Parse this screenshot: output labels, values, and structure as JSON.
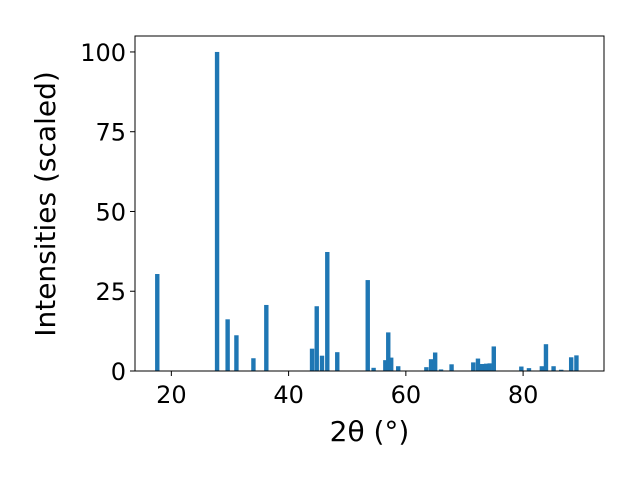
{
  "chart_data": {
    "type": "bar",
    "title": "",
    "xlabel": "2θ (°)",
    "ylabel": "Intensities (scaled)",
    "xlim": [
      13.8,
      93.8
    ],
    "ylim": [
      0,
      105
    ],
    "xticks": [
      20,
      40,
      60,
      80
    ],
    "yticks": [
      0,
      25,
      50,
      75,
      100
    ],
    "grid": false,
    "legend": "none",
    "bar_color": "#1f77b4",
    "bar_width": 0.75,
    "x": [
      17.6,
      27.8,
      29.6,
      31.1,
      34.0,
      36.2,
      44.0,
      44.8,
      45.7,
      46.6,
      48.3,
      53.5,
      54.5,
      56.5,
      57.0,
      57.5,
      58.7,
      63.5,
      64.3,
      65.0,
      66.0,
      67.8,
      71.5,
      72.3,
      73.0,
      73.7,
      74.3,
      75.0,
      79.7,
      81.0,
      83.2,
      83.9,
      85.2,
      86.5,
      88.2,
      89.1
    ],
    "values": [
      30.4,
      100.0,
      16.2,
      11.2,
      4.0,
      20.7,
      7.0,
      20.3,
      4.8,
      37.3,
      5.9,
      28.5,
      1.0,
      3.4,
      12.1,
      4.2,
      1.5,
      1.2,
      3.7,
      5.8,
      0.5,
      2.1,
      2.7,
      3.9,
      2.2,
      2.3,
      2.4,
      7.7,
      1.4,
      0.9,
      1.5,
      8.4,
      1.5,
      0.4,
      4.3,
      4.9
    ]
  }
}
